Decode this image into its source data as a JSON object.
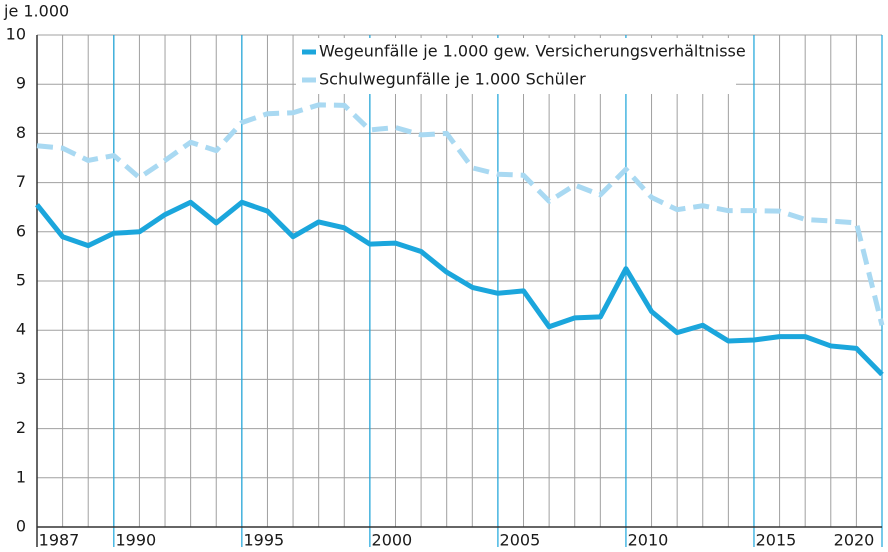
{
  "chart_data": {
    "type": "line",
    "y_axis_label": "je 1.000",
    "xlim": [
      1987,
      2020
    ],
    "xticks": [
      1987,
      1990,
      1995,
      2000,
      2005,
      2010,
      2015,
      2020
    ],
    "ylim": [
      0,
      10
    ],
    "yticks": [
      0,
      1,
      2,
      3,
      4,
      5,
      6,
      7,
      8,
      9,
      10
    ],
    "grid": true,
    "legend": "top",
    "x": [
      1987,
      1988,
      1989,
      1990,
      1991,
      1992,
      1993,
      1994,
      1995,
      1996,
      1997,
      1998,
      1999,
      2000,
      2001,
      2002,
      2003,
      2004,
      2005,
      2006,
      2007,
      2008,
      2009,
      2010,
      2011,
      2012,
      2013,
      2014,
      2015,
      2016,
      2017,
      2018,
      2019,
      2020
    ],
    "series": [
      {
        "name": "Wegeunfälle je 1.000 gew. Versicherungsverhältnisse",
        "color": "#1ba6dc",
        "dash": false,
        "values": [
          6.55,
          5.9,
          5.72,
          5.97,
          6.0,
          6.35,
          6.6,
          6.18,
          6.6,
          6.42,
          5.9,
          6.2,
          6.08,
          5.75,
          5.77,
          5.6,
          5.18,
          4.87,
          4.75,
          4.8,
          4.07,
          4.25,
          4.27,
          5.25,
          4.38,
          3.95,
          4.1,
          3.78,
          3.8,
          3.87,
          3.87,
          3.68,
          3.63,
          3.1
        ]
      },
      {
        "name": "Schulwegunfälle je 1.000 Schüler",
        "color": "#a9d9f2",
        "dash": true,
        "values": [
          7.75,
          7.7,
          7.45,
          7.55,
          7.1,
          7.45,
          7.82,
          7.65,
          8.22,
          8.4,
          8.42,
          8.58,
          8.57,
          8.07,
          8.12,
          7.97,
          8.0,
          7.3,
          7.17,
          7.15,
          6.62,
          6.95,
          6.75,
          7.27,
          6.7,
          6.45,
          6.53,
          6.43,
          6.43,
          6.42,
          6.25,
          6.22,
          6.18,
          4.1
        ]
      }
    ]
  }
}
